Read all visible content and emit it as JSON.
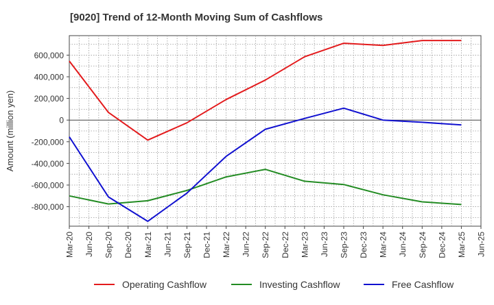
{
  "chart_data": {
    "type": "line",
    "title": "[9020]  Trend of 12-Month Moving Sum of Cashflows",
    "ylabel": "Amount (million yen)",
    "xlabel": "",
    "ylim": [
      -980000,
      780000
    ],
    "yticks": [
      600000,
      400000,
      200000,
      0,
      -200000,
      -400000,
      -600000,
      -800000
    ],
    "ytick_labels": [
      "600,000",
      "400,000",
      "200,000",
      "0",
      "-200,000",
      "-400,000",
      "-600,000",
      "-800,000"
    ],
    "x_tick_labels": [
      "Mar-20",
      "Jun-20",
      "Sep-20",
      "Dec-20",
      "Mar-21",
      "Jun-21",
      "Sep-21",
      "Dec-21",
      "Mar-22",
      "Jun-22",
      "Sep-22",
      "Dec-22",
      "Mar-23",
      "Jun-23",
      "Sep-23",
      "Dec-23",
      "Mar-24",
      "Jun-24",
      "Sep-24",
      "Dec-24",
      "Mar-25",
      "Jun-25"
    ],
    "x": [
      "Mar-20",
      "Sep-20",
      "Mar-21",
      "Sep-21",
      "Mar-22",
      "Sep-22",
      "Mar-23",
      "Sep-23",
      "Mar-24",
      "Sep-24",
      "Mar-25"
    ],
    "grid": true,
    "legend_position": "bottom",
    "series": [
      {
        "name": "Operating Cashflow",
        "color": "#e31a1c",
        "values": [
          545000,
          70000,
          -185000,
          -25000,
          190000,
          370000,
          585000,
          710000,
          690000,
          735000,
          735000
        ]
      },
      {
        "name": "Investing Cashflow",
        "color": "#228b22",
        "values": [
          -700000,
          -775000,
          -745000,
          -650000,
          -525000,
          -455000,
          -565000,
          -595000,
          -690000,
          -755000,
          -780000
        ]
      },
      {
        "name": "Free Cashflow",
        "color": "#1010d0",
        "values": [
          -155000,
          -710000,
          -935000,
          -675000,
          -335000,
          -85000,
          15000,
          110000,
          0,
          -20000,
          -45000
        ]
      }
    ]
  }
}
